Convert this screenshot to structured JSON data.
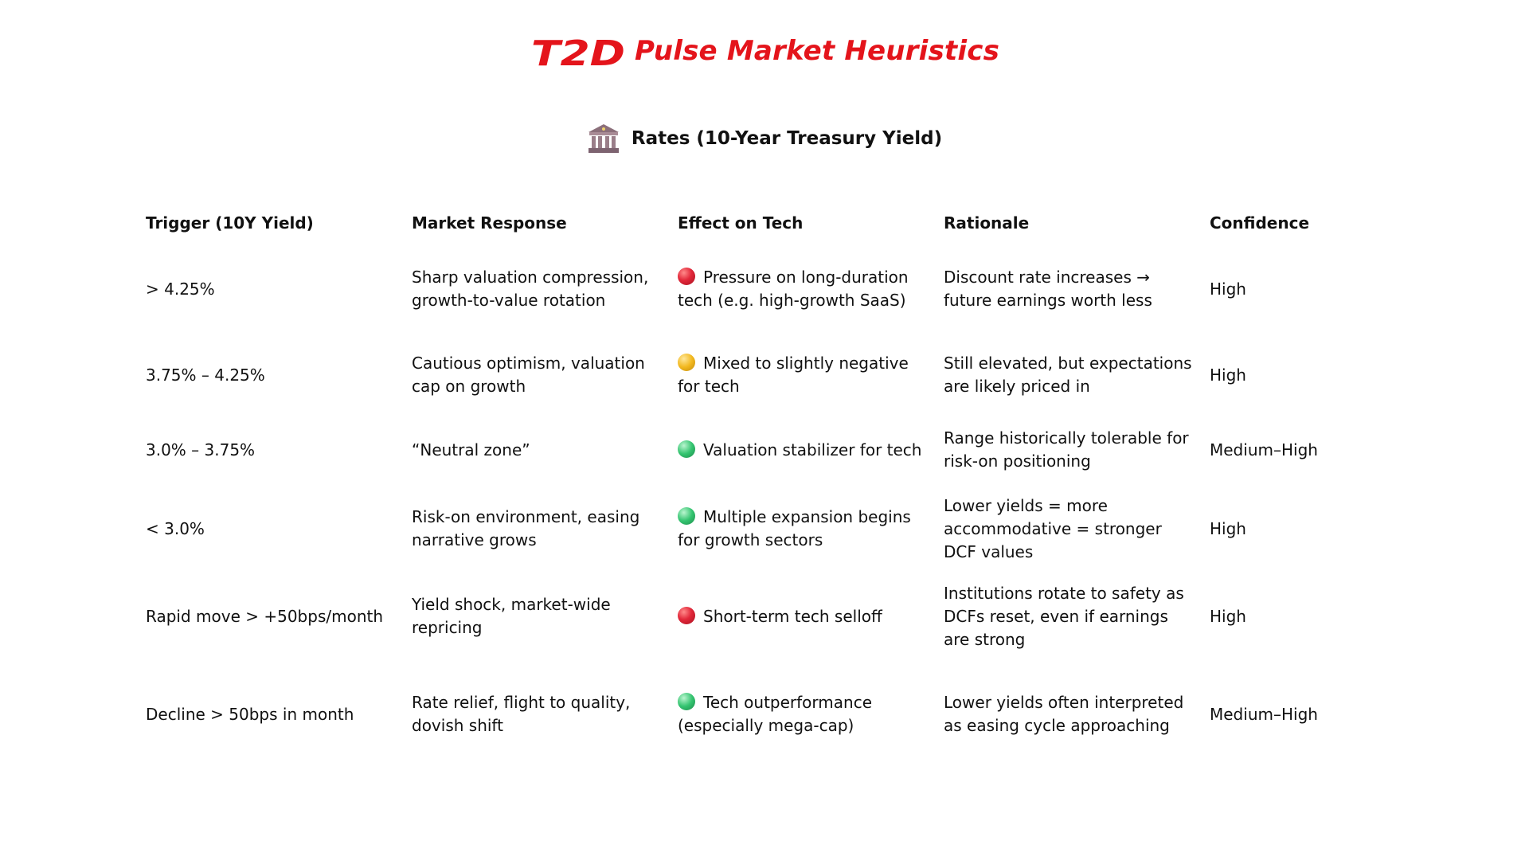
{
  "header": {
    "brand_color": "#e4141b",
    "title": "Pulse Market Heuristics"
  },
  "section": {
    "icon": "bank-icon",
    "title": "Rates (10-Year Treasury Yield)"
  },
  "table": {
    "columns": [
      "Trigger (10Y Yield)",
      "Market Response",
      "Effect on Tech",
      "Rationale",
      "Confidence"
    ],
    "rows": [
      {
        "trigger": "> 4.25%",
        "response": "Sharp valuation compression, growth-to-value rotation",
        "effect_signal": "red",
        "effect": "Pressure on long-duration tech (e.g. high-growth SaaS)",
        "rationale": "Discount rate increases → future earnings worth less",
        "confidence": "High"
      },
      {
        "trigger": "3.75% – 4.25%",
        "response": "Cautious optimism, valuation cap on growth",
        "effect_signal": "yellow",
        "effect": "Mixed to slightly negative for tech",
        "rationale": "Still elevated, but expectations are likely priced in",
        "confidence": "High"
      },
      {
        "trigger": "3.0% – 3.75%",
        "response": "“Neutral zone”",
        "effect_signal": "green",
        "effect": "Valuation stabilizer for tech",
        "rationale": "Range historically tolerable for risk-on positioning",
        "confidence": "Medium–High"
      },
      {
        "trigger": "< 3.0%",
        "response": "Risk-on environment, easing narrative grows",
        "effect_signal": "green",
        "effect": "Multiple expansion begins for growth sectors",
        "rationale": "Lower yields = more accommodative = stronger DCF values",
        "confidence": "High"
      },
      {
        "trigger": "Rapid move > +50bps/month",
        "response": "Yield shock, market-wide repricing",
        "effect_signal": "red",
        "effect": "Short-term tech selloff",
        "rationale": "Institutions rotate to safety as DCFs reset, even if earnings are strong",
        "confidence": "High"
      },
      {
        "trigger": "Decline > 50bps in month",
        "response": "Rate relief, flight to quality, dovish shift",
        "effect_signal": "green",
        "effect": "Tech outperformance (especially mega-cap)",
        "rationale": "Lower yields often interpreted as easing cycle approaching",
        "confidence": "Medium–High"
      }
    ]
  },
  "signal_colors": {
    "red": "#e2283a",
    "yellow": "#f2b81f",
    "green": "#34c470"
  }
}
